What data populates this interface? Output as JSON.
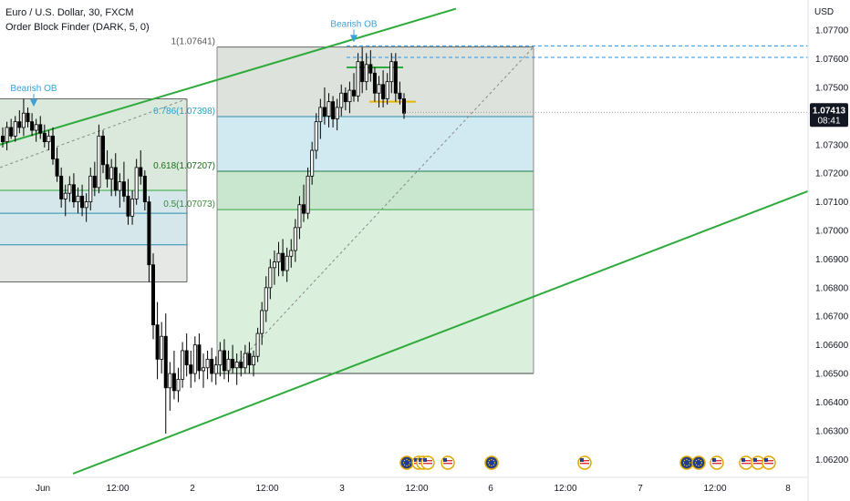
{
  "legend": {
    "symbol_line": "Euro / U.S. Dollar, 30, FXCM",
    "indicator_line": "Order Block Finder (DARK, 5, 0)"
  },
  "colors": {
    "up": "#000000",
    "down": "#000000",
    "channel": "#2eaa3a",
    "fib_blue_zone": "#c9e6ef",
    "fib_green_zone": "#cfe9d2",
    "fib_gray_zone": "#cfd6cf",
    "fib_text_blue": "#2aa0c8",
    "fib_text_green": "#3a8a3a",
    "fib_text_darkgreen": "#1d6e1d",
    "last_price_bg": "#131722",
    "ob_label": "#3aa0d8",
    "ob_line": "#2196f3",
    "ob_yellow": "#e6b800",
    "ob_green": "#2eaa3a"
  },
  "chart_data": {
    "type": "candlestick",
    "symbol": "Euro / U.S. Dollar",
    "interval": "30",
    "source": "FXCM",
    "currency": "USD",
    "ylim": [
      1.0615,
      1.0778
    ],
    "y_ticks": [
      "1.07700",
      "1.07600",
      "1.07500",
      "1.07400",
      "1.07300",
      "1.07200",
      "1.07100",
      "1.07000",
      "1.06900",
      "1.06800",
      "1.06700",
      "1.06600",
      "1.06500",
      "1.06400",
      "1.06300",
      "1.06200"
    ],
    "x_ticks": [
      "Jun",
      "12:00",
      "2",
      "12:00",
      "3",
      "12:00",
      "6",
      "12:00",
      "7",
      "12:00",
      "8"
    ],
    "last_price": "1.07413",
    "countdown": "08:41",
    "fib_levels": [
      {
        "label": "1(1.07641)",
        "value": 1.07641,
        "color": "gray"
      },
      {
        "label": "0.786(1.07398)",
        "value": 1.07398,
        "color": "blue"
      },
      {
        "label": "0.618(1.07207)",
        "value": 1.07207,
        "color": "green"
      },
      {
        "label": "0.5(1.07073)",
        "value": 1.07073,
        "color": "darkgreen"
      }
    ],
    "fib_low": 1.065,
    "annotations": [
      "Bearish OB",
      "Bearish OB"
    ],
    "ohlc": [
      [
        1.0733,
        1.0736,
        1.0729,
        1.0731
      ],
      [
        1.0731,
        1.0738,
        1.0728,
        1.0736
      ],
      [
        1.0736,
        1.0739,
        1.0732,
        1.0733
      ],
      [
        1.0733,
        1.074,
        1.0731,
        1.0738
      ],
      [
        1.0738,
        1.0742,
        1.0734,
        1.0736
      ],
      [
        1.0736,
        1.0746,
        1.0733,
        1.0741
      ],
      [
        1.0741,
        1.0743,
        1.0736,
        1.0738
      ],
      [
        1.0738,
        1.0741,
        1.0733,
        1.0735
      ],
      [
        1.0735,
        1.0739,
        1.0731,
        1.0737
      ],
      [
        1.0737,
        1.074,
        1.0732,
        1.0734
      ],
      [
        1.0734,
        1.0737,
        1.0729,
        1.0731
      ],
      [
        1.0731,
        1.0735,
        1.0728,
        1.0733
      ],
      [
        1.0733,
        1.0736,
        1.0723,
        1.0725
      ],
      [
        1.0725,
        1.0729,
        1.0717,
        1.0719
      ],
      [
        1.0719,
        1.0722,
        1.0708,
        1.0711
      ],
      [
        1.0711,
        1.0716,
        1.0705,
        1.0713
      ],
      [
        1.0713,
        1.0719,
        1.071,
        1.0716
      ],
      [
        1.0716,
        1.072,
        1.0708,
        1.071
      ],
      [
        1.071,
        1.0715,
        1.0706,
        1.0712
      ],
      [
        1.0712,
        1.0716,
        1.0705,
        1.0708
      ],
      [
        1.0708,
        1.0713,
        1.0703,
        1.071
      ],
      [
        1.071,
        1.0722,
        1.0707,
        1.0719
      ],
      [
        1.0719,
        1.0724,
        1.0712,
        1.0715
      ],
      [
        1.0715,
        1.0737,
        1.0713,
        1.0733
      ],
      [
        1.0733,
        1.0735,
        1.072,
        1.0723
      ],
      [
        1.0723,
        1.0728,
        1.0715,
        1.0718
      ],
      [
        1.0718,
        1.0725,
        1.0712,
        1.0722
      ],
      [
        1.0722,
        1.0727,
        1.0712,
        1.0714
      ],
      [
        1.0714,
        1.072,
        1.0708,
        1.0717
      ],
      [
        1.0717,
        1.0724,
        1.071,
        1.0712
      ],
      [
        1.0712,
        1.0718,
        1.0702,
        1.0705
      ],
      [
        1.0705,
        1.0714,
        1.0702,
        1.0711
      ],
      [
        1.0711,
        1.0725,
        1.0709,
        1.0722
      ],
      [
        1.0722,
        1.0728,
        1.0716,
        1.0719
      ],
      [
        1.0719,
        1.0721,
        1.0707,
        1.071
      ],
      [
        1.071,
        1.0712,
        1.0682,
        1.0688
      ],
      [
        1.0688,
        1.0692,
        1.0662,
        1.0667
      ],
      [
        1.0667,
        1.0675,
        1.0648,
        1.0655
      ],
      [
        1.0655,
        1.0668,
        1.065,
        1.0663
      ],
      [
        1.0663,
        1.0671,
        1.0629,
        1.0645
      ],
      [
        1.0645,
        1.0654,
        1.0637,
        1.065
      ],
      [
        1.065,
        1.0658,
        1.0641,
        1.0644
      ],
      [
        1.0644,
        1.0652,
        1.064,
        1.0648
      ],
      [
        1.0648,
        1.0661,
        1.0645,
        1.0658
      ],
      [
        1.0658,
        1.0664,
        1.0649,
        1.0653
      ],
      [
        1.0653,
        1.0658,
        1.0645,
        1.065
      ],
      [
        1.065,
        1.0663,
        1.0647,
        1.066
      ],
      [
        1.066,
        1.0664,
        1.0648,
        1.0651
      ],
      [
        1.0651,
        1.0657,
        1.0645,
        1.0652
      ],
      [
        1.0652,
        1.0658,
        1.0648,
        1.0655
      ],
      [
        1.0655,
        1.0659,
        1.0647,
        1.065
      ],
      [
        1.065,
        1.0656,
        1.0646,
        1.0653
      ],
      [
        1.0653,
        1.0661,
        1.0649,
        1.0658
      ],
      [
        1.0658,
        1.0662,
        1.0648,
        1.0651
      ],
      [
        1.0651,
        1.0658,
        1.0647,
        1.0655
      ],
      [
        1.0655,
        1.066,
        1.065,
        1.0652
      ],
      [
        1.0652,
        1.0657,
        1.0646,
        1.0654
      ],
      [
        1.0654,
        1.0658,
        1.0649,
        1.0652
      ],
      [
        1.0652,
        1.066,
        1.065,
        1.0657
      ],
      [
        1.0657,
        1.0661,
        1.065,
        1.0653
      ],
      [
        1.0653,
        1.0658,
        1.0649,
        1.0656
      ],
      [
        1.0656,
        1.0666,
        1.0654,
        1.0664
      ],
      [
        1.0664,
        1.0675,
        1.066,
        1.0672
      ],
      [
        1.0672,
        1.0684,
        1.0668,
        1.068
      ],
      [
        1.068,
        1.069,
        1.0676,
        1.0687
      ],
      [
        1.0687,
        1.0693,
        1.0681,
        1.0689
      ],
      [
        1.0689,
        1.0696,
        1.0684,
        1.0692
      ],
      [
        1.0692,
        1.0697,
        1.0684,
        1.0686
      ],
      [
        1.0686,
        1.0694,
        1.0682,
        1.0691
      ],
      [
        1.0691,
        1.0697,
        1.0687,
        1.0693
      ],
      [
        1.0693,
        1.0704,
        1.0689,
        1.0701
      ],
      [
        1.0701,
        1.0712,
        1.0697,
        1.0709
      ],
      [
        1.0709,
        1.0716,
        1.0703,
        1.0706
      ],
      [
        1.0706,
        1.0722,
        1.0704,
        1.0719
      ],
      [
        1.0719,
        1.0731,
        1.0716,
        1.0728
      ],
      [
        1.0728,
        1.0741,
        1.0725,
        1.0738
      ],
      [
        1.0738,
        1.0746,
        1.0732,
        1.0743
      ],
      [
        1.0743,
        1.075,
        1.0737,
        1.074
      ],
      [
        1.074,
        1.0748,
        1.0736,
        1.0745
      ],
      [
        1.0745,
        1.0747,
        1.0736,
        1.0739
      ],
      [
        1.0739,
        1.0746,
        1.0735,
        1.0743
      ],
      [
        1.0743,
        1.0751,
        1.074,
        1.0748
      ],
      [
        1.0748,
        1.075,
        1.0742,
        1.0745
      ],
      [
        1.0745,
        1.0752,
        1.0741,
        1.0749
      ],
      [
        1.0749,
        1.0755,
        1.0745,
        1.0747
      ],
      [
        1.0747,
        1.0762,
        1.0745,
        1.0759
      ],
      [
        1.0759,
        1.0764,
        1.0748,
        1.0752
      ],
      [
        1.0752,
        1.0762,
        1.0749,
        1.0758
      ],
      [
        1.0758,
        1.0763,
        1.0752,
        1.0755
      ],
      [
        1.0755,
        1.0757,
        1.0745,
        1.0748
      ],
      [
        1.0748,
        1.0754,
        1.0743,
        1.0751
      ],
      [
        1.0751,
        1.0756,
        1.0743,
        1.0746
      ],
      [
        1.0746,
        1.0755,
        1.0744,
        1.0752
      ],
      [
        1.0752,
        1.0762,
        1.0748,
        1.0759
      ],
      [
        1.0759,
        1.0762,
        1.0745,
        1.0748
      ],
      [
        1.0748,
        1.0752,
        1.0744,
        1.0746
      ],
      [
        1.0746,
        1.0748,
        1.0739,
        1.0741
      ]
    ]
  },
  "event_icons": [
    {
      "kind": "eu",
      "label": "EU"
    },
    {
      "kind": "us",
      "label": "US"
    },
    {
      "kind": "us",
      "label": "US"
    },
    {
      "kind": "us",
      "label": "US"
    },
    {
      "kind": "us",
      "label": "US"
    },
    {
      "kind": "eu",
      "label": "EU"
    },
    {
      "kind": "us",
      "label": "US"
    },
    {
      "kind": "eu",
      "label": "EU"
    },
    {
      "kind": "eu",
      "label": "EU"
    },
    {
      "kind": "us",
      "label": "US"
    },
    {
      "kind": "us",
      "label": "US"
    },
    {
      "kind": "us",
      "label": "US"
    },
    {
      "kind": "us",
      "label": "US"
    }
  ]
}
